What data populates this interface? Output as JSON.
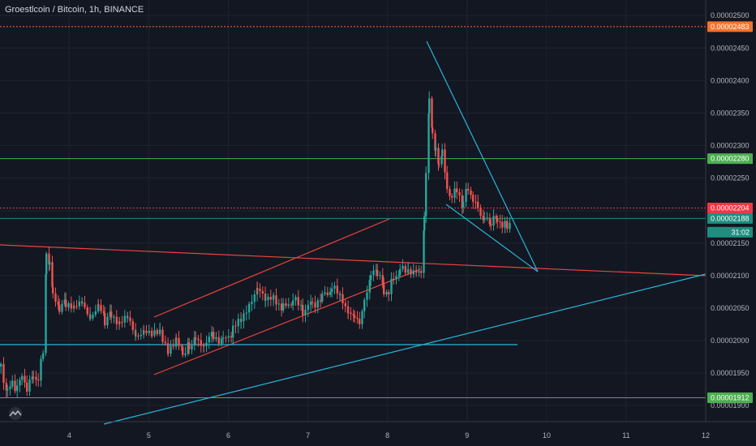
{
  "header": {
    "title": "Groestlcoin / Bitcoin, 1h, BINANCE"
  },
  "chart_data": {
    "type": "candlestick",
    "title": "Groestlcoin / Bitcoin, 1h, BINANCE",
    "y_ticks": [
      "0.00002500",
      "0.00002450",
      "0.00002400",
      "0.00002350",
      "0.00002300",
      "0.00002250",
      "0.00002200",
      "0.00002150",
      "0.00002100",
      "0.00002050",
      "0.00002000",
      "0.00001950",
      "0.00001900"
    ],
    "y_tick_values": [
      2.5e-05,
      2.45e-05,
      2.4e-05,
      2.35e-05,
      2.3e-05,
      2.25e-05,
      2.2e-05,
      2.15e-05,
      2.1e-05,
      2.05e-05,
      2e-05,
      1.95e-05,
      1.9e-05
    ],
    "x_ticks": [
      "4",
      "5",
      "6",
      "7",
      "8",
      "9",
      "10",
      "11",
      "12"
    ],
    "x_tick_values": [
      4,
      5,
      6,
      7,
      8,
      9,
      10,
      11,
      12
    ],
    "xlim": [
      3.13,
      12.0
    ],
    "ylim": [
      1.874e-05,
      2.519e-05
    ],
    "price_tags": [
      {
        "label": "0.00002483",
        "value": 2.483e-05,
        "color": "#f6722b",
        "line": "dotted"
      },
      {
        "label": "0.00002280",
        "value": 2.28e-05,
        "color": "#4caf50",
        "line": "solid"
      },
      {
        "label": "0.00002204",
        "value": 2.204e-05,
        "color": "#f23645",
        "line": "dotted"
      },
      {
        "label": "0.00002188",
        "value": 2.188e-05,
        "color": "#1e8e7e",
        "line": "solid"
      },
      {
        "label": "0.00001912",
        "value": 1.912e-05,
        "color": "#4caf50",
        "line": "solid"
      }
    ],
    "countdown": "31:02",
    "colors": {
      "up": "#26a69a",
      "down": "#ef5350",
      "background": "#131722",
      "grid": "#1f2330"
    }
  }
}
